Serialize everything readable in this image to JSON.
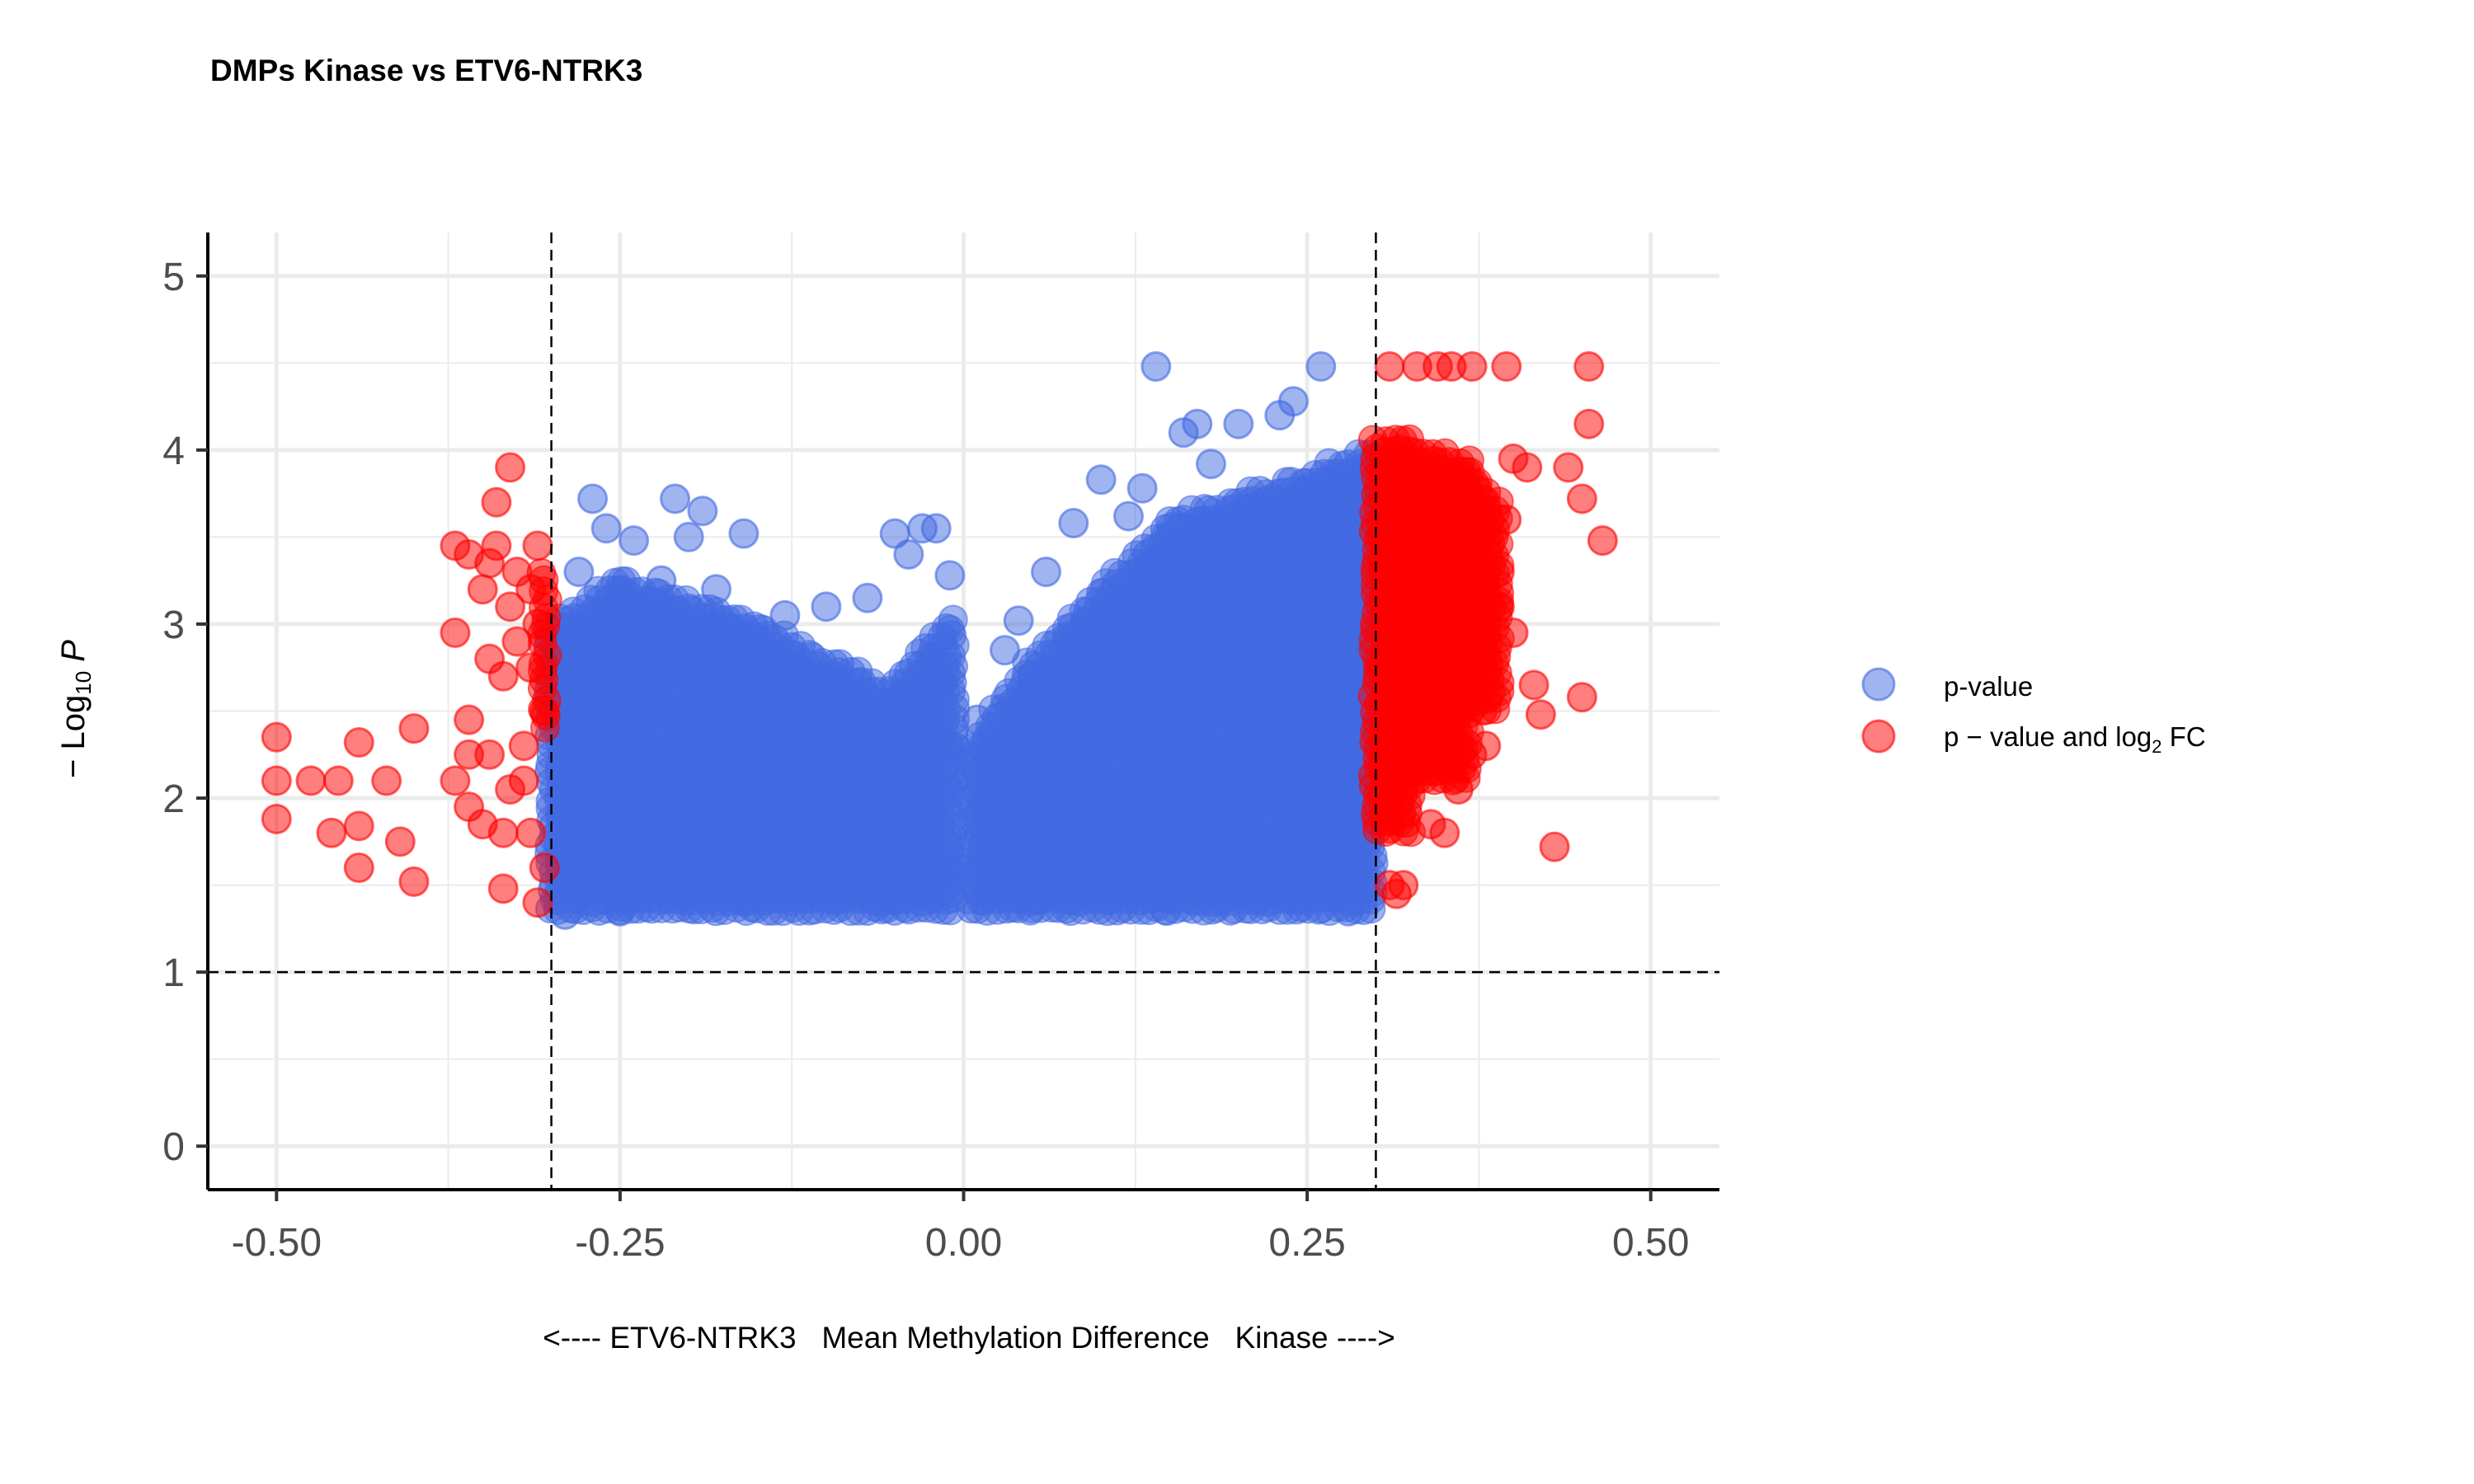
{
  "chart_data": {
    "type": "scatter",
    "title": "DMPs Kinase vs ETV6-NTRK3",
    "xlabel": "<---- ETV6-NTRK3   Mean Methylation Difference   Kinase ---->",
    "ylabel": {
      "prefix": "− Log",
      "subscript": "10",
      "suffix": " P"
    },
    "xlim": [
      -0.55,
      0.55
    ],
    "ylim": [
      -0.25,
      5.25
    ],
    "x_ticks": [
      -0.5,
      -0.25,
      0.0,
      0.25,
      0.5
    ],
    "x_tick_labels": [
      "-0.50",
      "-0.25",
      "0.00",
      "0.25",
      "0.50"
    ],
    "y_ticks": [
      0,
      1,
      2,
      3,
      4,
      5
    ],
    "y_tick_labels": [
      "0",
      "1",
      "2",
      "3",
      "4",
      "5"
    ],
    "grid": true,
    "thresholds": {
      "x": [
        -0.3,
        0.3
      ],
      "y": 1
    },
    "legend_position": "right",
    "series": [
      {
        "name": "p-value",
        "color": "#4169E1",
        "legend_label": {
          "text": "p-value"
        },
        "points": [
          [
            0.14,
            4.48
          ],
          [
            0.26,
            4.48
          ],
          [
            0.24,
            4.28
          ],
          [
            0.23,
            4.2
          ],
          [
            0.2,
            4.15
          ],
          [
            0.17,
            4.15
          ],
          [
            0.16,
            4.1
          ],
          [
            0.1,
            3.83
          ],
          [
            0.13,
            3.78
          ],
          [
            0.08,
            3.58
          ],
          [
            0.06,
            3.3
          ],
          [
            0.04,
            3.02
          ],
          [
            -0.21,
            3.72
          ],
          [
            -0.27,
            3.72
          ],
          [
            -0.19,
            3.65
          ],
          [
            -0.26,
            3.55
          ],
          [
            -0.24,
            3.48
          ],
          [
            -0.16,
            3.52
          ],
          [
            -0.2,
            3.5
          ],
          [
            -0.05,
            3.52
          ],
          [
            -0.03,
            3.55
          ],
          [
            -0.02,
            3.55
          ],
          [
            -0.04,
            3.4
          ],
          [
            -0.1,
            3.1
          ],
          [
            -0.13,
            3.05
          ],
          [
            -0.07,
            3.15
          ],
          [
            -0.01,
            3.28
          ],
          [
            -0.28,
            3.3
          ],
          [
            -0.22,
            3.25
          ],
          [
            -0.18,
            3.2
          ],
          [
            -0.29,
            1.33
          ],
          [
            -0.25,
            1.35
          ],
          [
            0.28,
            1.35
          ],
          [
            0.27,
            1.45
          ],
          [
            0.0,
            1.6
          ],
          [
            0.01,
            2.45
          ],
          [
            0.02,
            2.2
          ],
          [
            -0.01,
            2.3
          ],
          [
            0.03,
            2.85
          ],
          [
            0.05,
            2.7
          ],
          [
            0.12,
            3.62
          ],
          [
            0.18,
            3.92
          ]
        ],
        "dense_regions": [
          {
            "x": [
              -0.3,
              -0.25
            ],
            "ymin": 1.35,
            "ymax_range": [
              3.0,
              3.25
            ]
          },
          {
            "x": [
              -0.25,
              -0.15
            ],
            "ymin": 1.35,
            "ymax_range": [
              3.25,
              3.0
            ]
          },
          {
            "x": [
              -0.15,
              -0.05
            ],
            "ymin": 1.35,
            "ymax_range": [
              3.0,
              2.6
            ]
          },
          {
            "x": [
              -0.05,
              -0.005
            ],
            "ymin": 1.35,
            "ymax_range": [
              2.7,
              3.05
            ]
          },
          {
            "x": [
              0.005,
              0.05
            ],
            "ymin": 1.35,
            "ymax_range": [
              2.3,
              2.8
            ]
          },
          {
            "x": [
              0.05,
              0.15
            ],
            "ymin": 1.35,
            "ymax_range": [
              2.8,
              3.6
            ]
          },
          {
            "x": [
              0.15,
              0.25
            ],
            "ymin": 1.35,
            "ymax_range": [
              3.6,
              3.85
            ]
          },
          {
            "x": [
              0.25,
              0.3
            ],
            "ymin": 1.35,
            "ymax_range": [
              3.85,
              4.0
            ]
          }
        ]
      },
      {
        "name": "p − value and log2 FC",
        "color": "#FF0000",
        "legend_label": {
          "text": "p − value and log",
          "subscript": "2",
          "suffix": " FC"
        },
        "points": [
          [
            -0.5,
            2.35
          ],
          [
            -0.5,
            2.1
          ],
          [
            -0.5,
            1.88
          ],
          [
            -0.475,
            2.1
          ],
          [
            -0.455,
            2.1
          ],
          [
            -0.46,
            1.8
          ],
          [
            -0.44,
            2.32
          ],
          [
            -0.44,
            1.84
          ],
          [
            -0.44,
            1.6
          ],
          [
            -0.42,
            2.1
          ],
          [
            -0.41,
            1.75
          ],
          [
            -0.4,
            2.4
          ],
          [
            -0.4,
            1.52
          ],
          [
            -0.37,
            2.95
          ],
          [
            -0.37,
            3.45
          ],
          [
            -0.37,
            2.1
          ],
          [
            -0.36,
            3.4
          ],
          [
            -0.36,
            2.45
          ],
          [
            -0.36,
            2.25
          ],
          [
            -0.36,
            1.95
          ],
          [
            -0.35,
            3.2
          ],
          [
            -0.35,
            1.85
          ],
          [
            -0.345,
            3.35
          ],
          [
            -0.345,
            2.8
          ],
          [
            -0.345,
            2.25
          ],
          [
            -0.34,
            3.7
          ],
          [
            -0.34,
            3.45
          ],
          [
            -0.335,
            2.7
          ],
          [
            -0.335,
            1.8
          ],
          [
            -0.335,
            1.48
          ],
          [
            -0.33,
            3.9
          ],
          [
            -0.33,
            3.1
          ],
          [
            -0.33,
            2.05
          ],
          [
            -0.325,
            3.3
          ],
          [
            -0.325,
            2.9
          ],
          [
            -0.32,
            2.3
          ],
          [
            -0.32,
            2.1
          ],
          [
            -0.315,
            3.2
          ],
          [
            -0.315,
            2.75
          ],
          [
            -0.315,
            1.8
          ],
          [
            -0.31,
            3.45
          ],
          [
            -0.31,
            3.0
          ],
          [
            -0.31,
            1.4
          ],
          [
            -0.305,
            2.5
          ],
          [
            -0.305,
            1.6
          ],
          [
            0.31,
            4.48
          ],
          [
            0.33,
            4.48
          ],
          [
            0.345,
            4.48
          ],
          [
            0.355,
            4.48
          ],
          [
            0.37,
            4.48
          ],
          [
            0.395,
            4.48
          ],
          [
            0.455,
            4.48
          ],
          [
            0.455,
            4.15
          ],
          [
            0.44,
            3.9
          ],
          [
            0.45,
            3.72
          ],
          [
            0.465,
            3.48
          ],
          [
            0.41,
            3.9
          ],
          [
            0.4,
            3.95
          ],
          [
            0.395,
            3.6
          ],
          [
            0.39,
            3.3
          ],
          [
            0.4,
            2.95
          ],
          [
            0.415,
            2.65
          ],
          [
            0.42,
            2.48
          ],
          [
            0.45,
            2.58
          ],
          [
            0.43,
            1.72
          ],
          [
            0.38,
            2.3
          ],
          [
            0.37,
            2.25
          ],
          [
            0.36,
            2.05
          ],
          [
            0.35,
            1.8
          ],
          [
            0.34,
            1.85
          ],
          [
            0.33,
            2.15
          ],
          [
            0.32,
            1.5
          ],
          [
            0.315,
            1.45
          ],
          [
            0.31,
            1.5
          ],
          [
            0.36,
            2.7
          ],
          [
            0.37,
            2.6
          ],
          [
            0.38,
            2.95
          ],
          [
            0.39,
            3.1
          ]
        ],
        "dense_regions": [
          {
            "x": [
              -0.305,
              -0.3
            ],
            "ymin": 2.4,
            "ymax_range": [
              3.3,
              3.3
            ]
          },
          {
            "x": [
              0.3,
              0.33
            ],
            "ymin": 1.8,
            "ymax_range": [
              4.05,
              4.05
            ]
          },
          {
            "x": [
              0.33,
              0.37
            ],
            "ymin": 2.1,
            "ymax_range": [
              4.0,
              3.95
            ]
          },
          {
            "x": [
              0.37,
              0.39
            ],
            "ymin": 2.5,
            "ymax_range": [
              3.9,
              3.7
            ]
          }
        ]
      }
    ]
  }
}
